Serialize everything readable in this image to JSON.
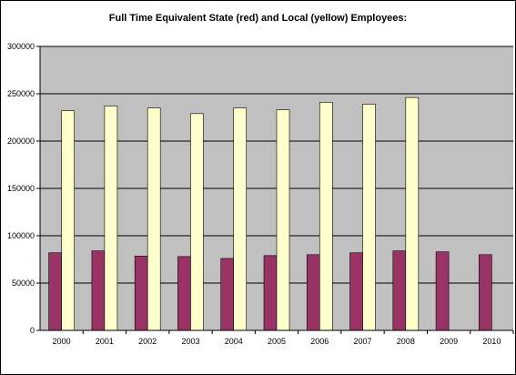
{
  "chart_data": {
    "type": "bar",
    "title": "Full Time Equivalent State (red) and Local (yellow) Employees:",
    "categories": [
      "2000",
      "2001",
      "2002",
      "2003",
      "2004",
      "2005",
      "2006",
      "2007",
      "2008",
      "2009",
      "2010"
    ],
    "series": [
      {
        "values": [
          82000,
          84000,
          78500,
          78000,
          76000,
          79000,
          80000,
          82000,
          84000,
          83000,
          80000
        ],
        "color": "#993366"
      },
      {
        "values": [
          232000,
          237000,
          235000,
          229000,
          235000,
          233000,
          241000,
          239000,
          246000,
          null,
          null
        ],
        "color": "#FFFFCC"
      }
    ],
    "ylim": [
      0,
      300000
    ],
    "yticks": [
      "0",
      "50000",
      "100000",
      "150000",
      "200000",
      "250000",
      "300000"
    ],
    "grid": true,
    "plot_background": "#C0C0C0",
    "xlabel": "",
    "ylabel": ""
  }
}
